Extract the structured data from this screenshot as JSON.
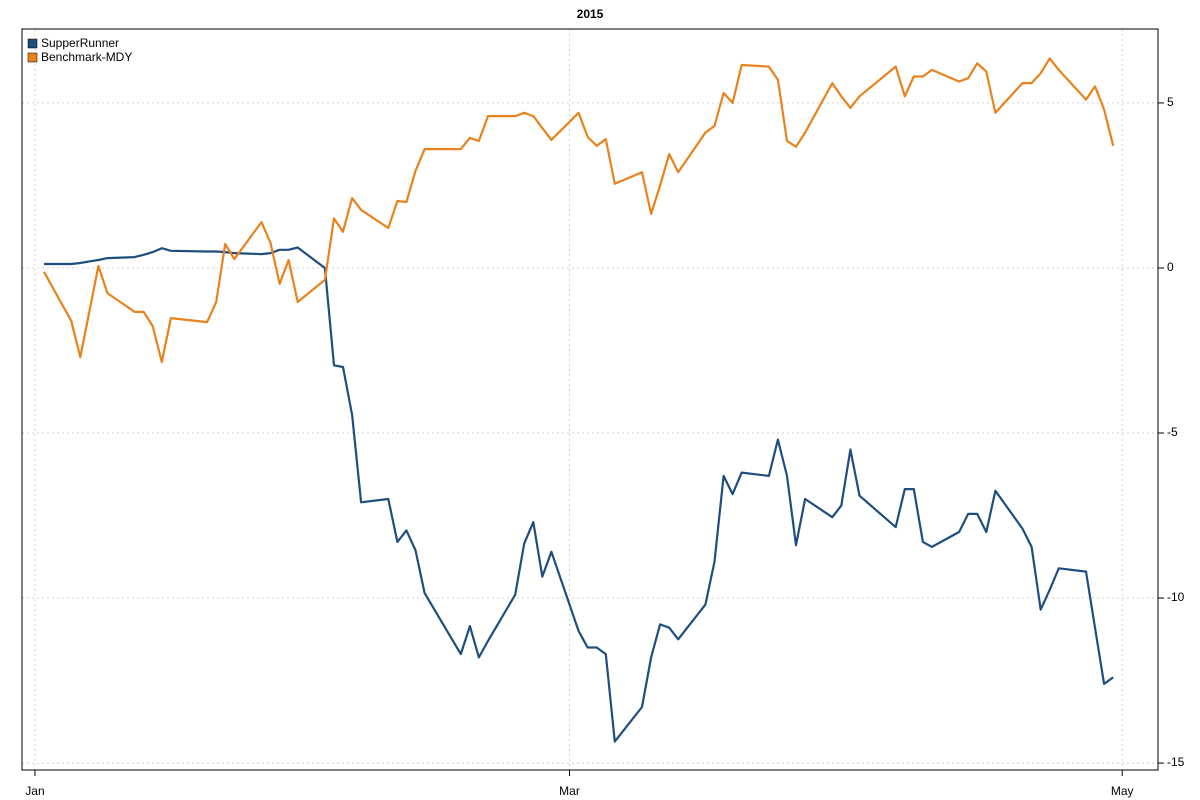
{
  "chart_data": {
    "type": "line",
    "title": "2015",
    "x": [
      1,
      4,
      5,
      6,
      7,
      8,
      11,
      12,
      13,
      14,
      15,
      19,
      20,
      21,
      22,
      25,
      26,
      27,
      28,
      29,
      32,
      33,
      34,
      35,
      36,
      39,
      40,
      41,
      42,
      43,
      47,
      48,
      49,
      50,
      53,
      54,
      55,
      56,
      57,
      60,
      61,
      62,
      63,
      64,
      67,
      68,
      69,
      70,
      71,
      74,
      75,
      76,
      77,
      78,
      81,
      82,
      83,
      84,
      85,
      88,
      89,
      90,
      91,
      95,
      96,
      97,
      98,
      99,
      102,
      103,
      104,
      105,
      106,
      109,
      110,
      111,
      112,
      113,
      116,
      117,
      118,
      119
    ],
    "series": [
      {
        "name": "SupperRunner",
        "color": "#1f4e7e",
        "values": [
          0.12,
          0.12,
          0.15,
          0.2,
          0.24,
          0.3,
          0.33,
          0.4,
          0.48,
          0.6,
          0.52,
          0.5,
          0.5,
          0.48,
          0.45,
          0.42,
          0.45,
          0.55,
          0.55,
          0.62,
          0.0,
          -2.95,
          -3.0,
          -4.45,
          -7.1,
          -7.0,
          -8.3,
          -7.95,
          -8.55,
          -9.85,
          -11.7,
          -10.85,
          -11.8,
          -11.3,
          -9.9,
          -8.35,
          -7.7,
          -9.35,
          -8.6,
          -11.0,
          -11.5,
          -11.5,
          -11.7,
          -14.35,
          -13.3,
          -11.8,
          -10.8,
          -10.9,
          -11.25,
          -10.2,
          -8.9,
          -6.3,
          -6.85,
          -6.2,
          -6.3,
          -5.2,
          -6.3,
          -8.4,
          -7.0,
          -7.55,
          -7.2,
          -5.5,
          -6.9,
          -7.85,
          -6.7,
          -6.7,
          -8.3,
          -8.45,
          -8.0,
          -7.45,
          -7.45,
          -8.0,
          -6.75,
          -7.9,
          -8.45,
          -10.35,
          -9.75,
          -9.1,
          -9.2,
          -10.9,
          -12.6,
          -12.4
        ]
      },
      {
        "name": "Benchmark-MDY",
        "color": "#e8821c",
        "values": [
          -0.12,
          -1.6,
          -2.7,
          -1.33,
          0.06,
          -0.76,
          -1.33,
          -1.33,
          -1.76,
          -2.85,
          -1.52,
          -1.64,
          -1.03,
          0.73,
          0.27,
          1.39,
          0.76,
          -0.48,
          0.24,
          -1.03,
          -0.36,
          1.5,
          1.1,
          2.12,
          1.76,
          1.21,
          2.03,
          2.0,
          2.94,
          3.6,
          3.6,
          3.94,
          3.85,
          4.6,
          4.6,
          4.7,
          4.6,
          4.24,
          3.88,
          4.7,
          3.97,
          3.7,
          3.9,
          2.55,
          2.9,
          1.64,
          2.5,
          3.45,
          2.9,
          4.1,
          4.3,
          5.3,
          5.0,
          6.15,
          6.1,
          5.7,
          3.85,
          3.67,
          4.1,
          5.6,
          5.2,
          4.85,
          5.2,
          6.1,
          5.2,
          5.8,
          5.8,
          6.0,
          5.65,
          5.75,
          6.2,
          5.95,
          4.7,
          5.6,
          5.6,
          5.9,
          6.35,
          6.0,
          5.1,
          5.5,
          4.8,
          3.7
        ]
      }
    ],
    "xlim": [
      -1.43,
      123.95
    ],
    "xticks": [
      {
        "value": 0,
        "label": "Jan"
      },
      {
        "value": 59,
        "label": "Mar"
      },
      {
        "value": 120,
        "label": "May"
      }
    ],
    "ylim": [
      -15.21,
      7.24
    ],
    "yticks": [
      -15,
      -10,
      -5,
      0,
      5
    ],
    "grid": true,
    "legend": "top-left"
  }
}
